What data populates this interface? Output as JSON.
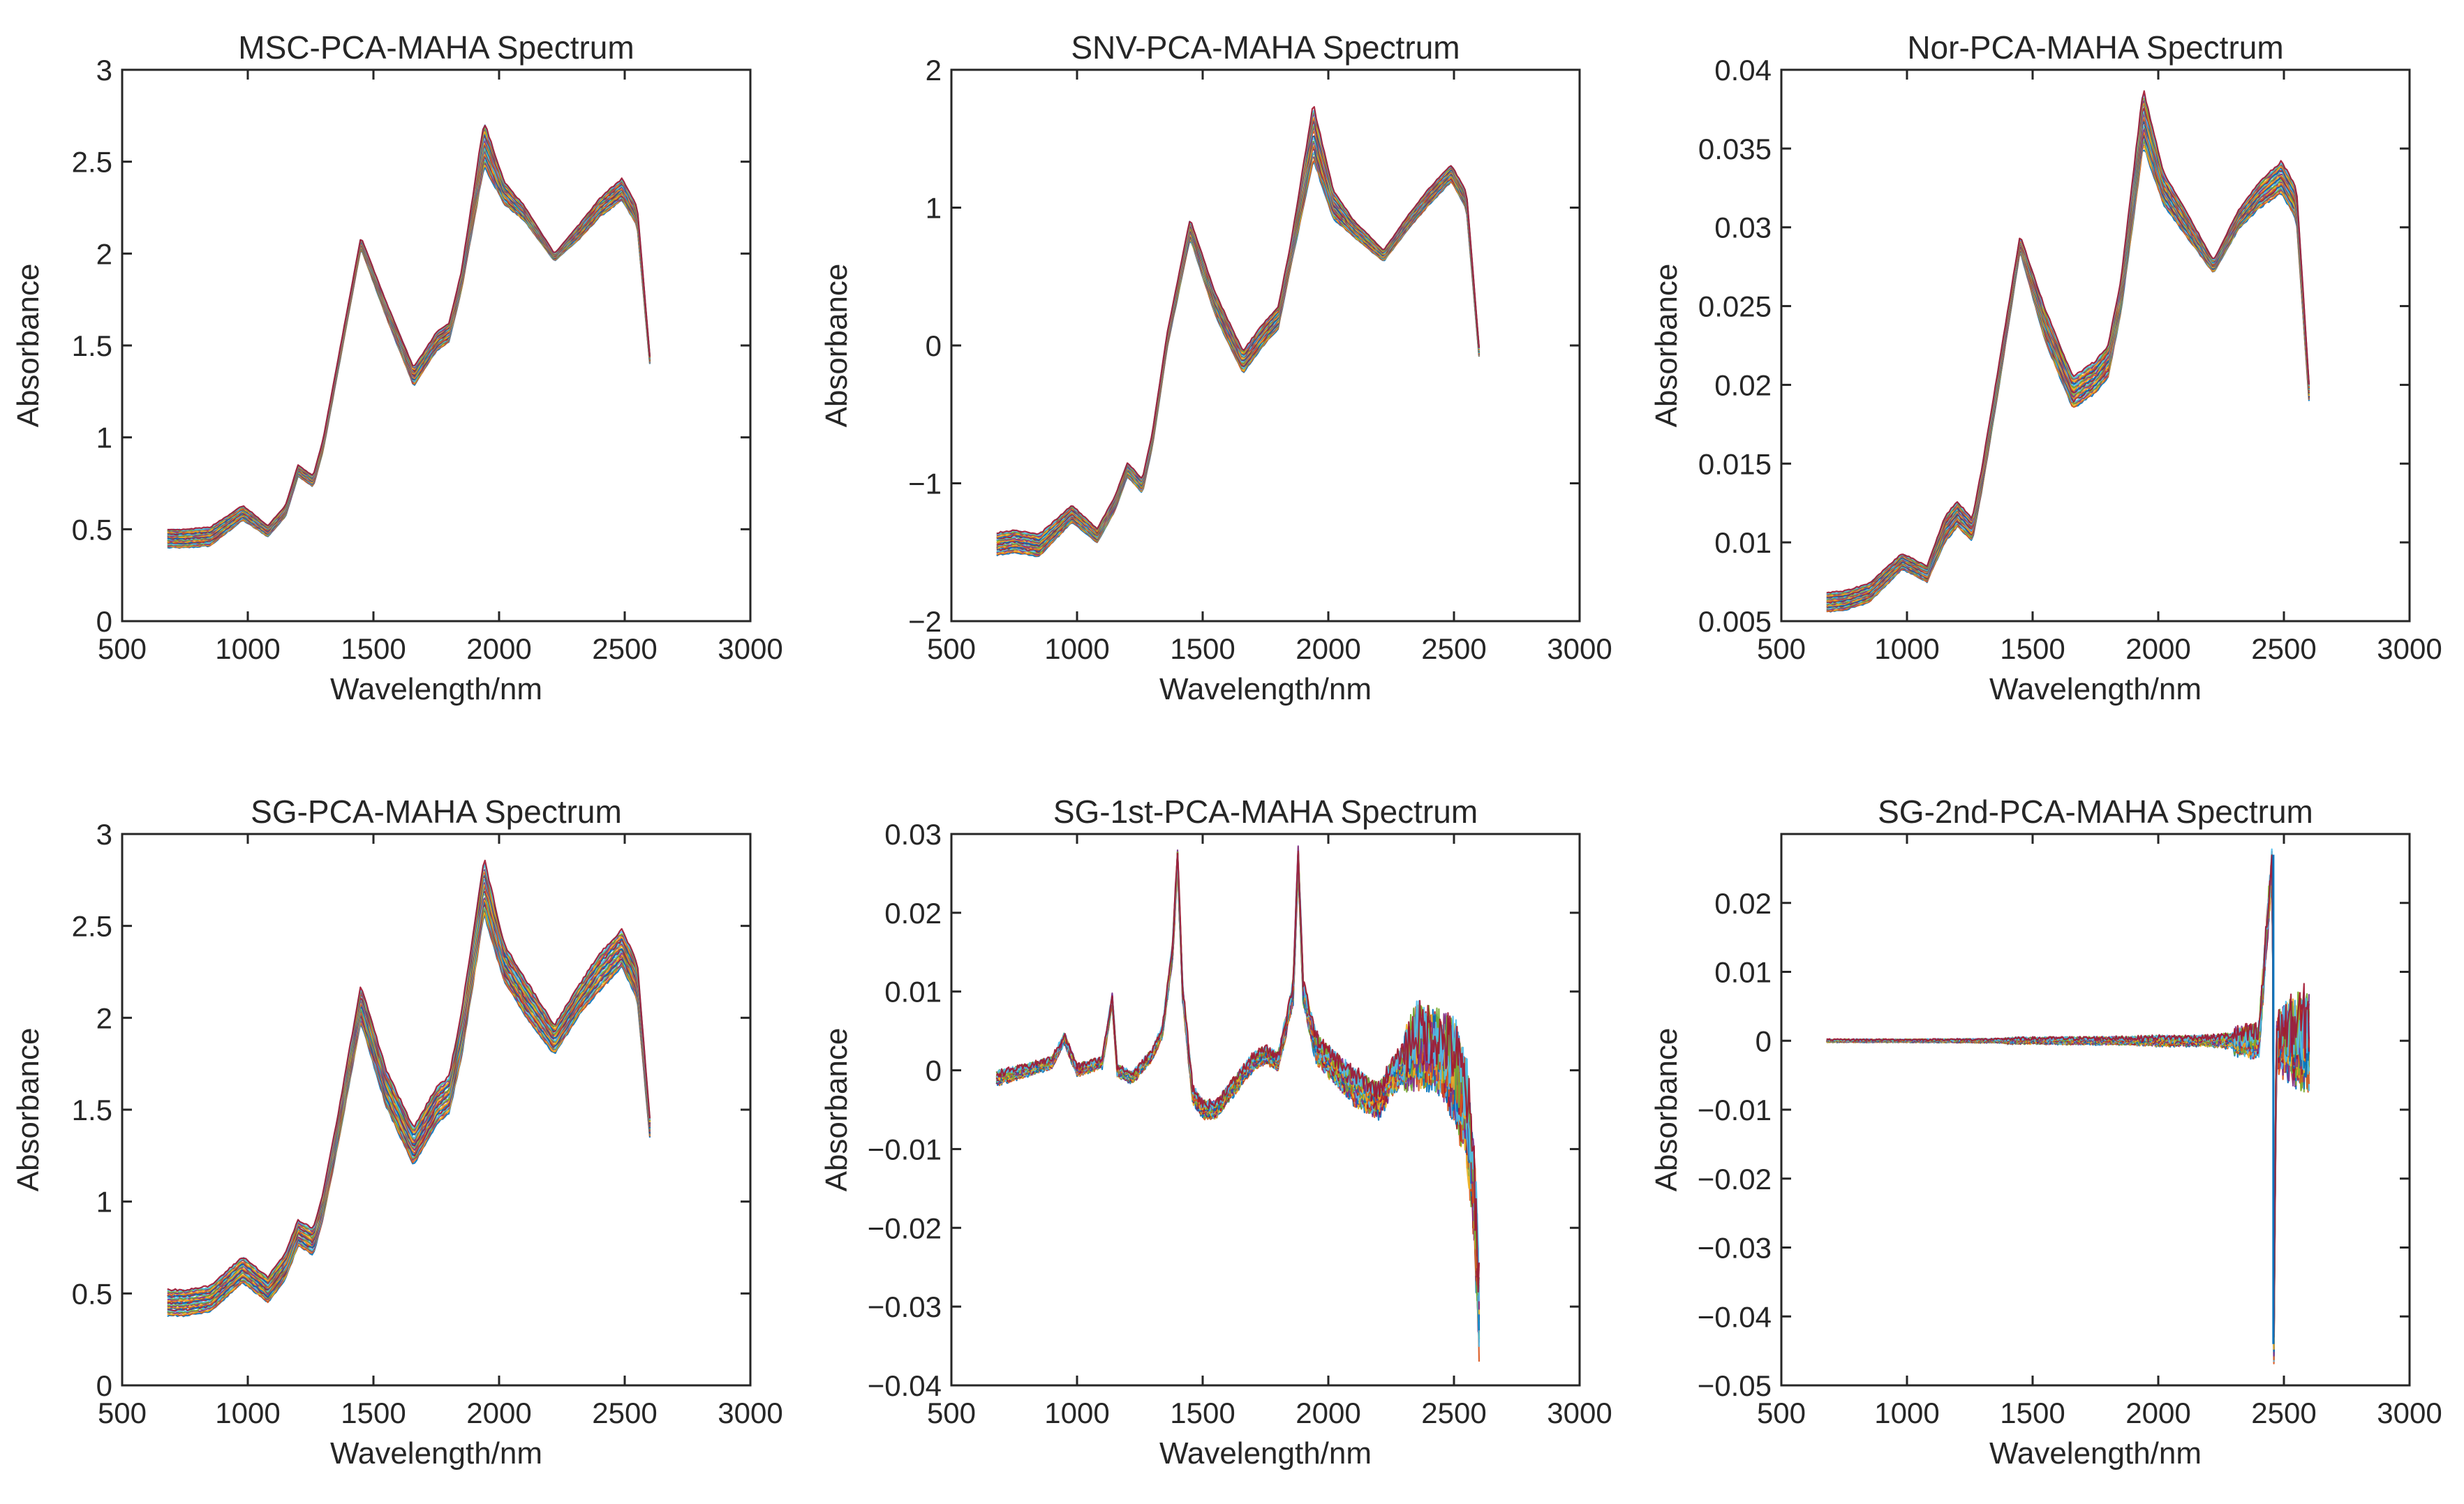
{
  "figure": {
    "chart_data": [
      {
        "type": "line",
        "title": "MSC-PCA-MAHA Spectrum",
        "xlabel": "Wavelength/nm",
        "ylabel": "Absorbance",
        "xlim": [
          500,
          3000
        ],
        "ylim": [
          0,
          3
        ],
        "xticks": [
          500,
          1000,
          1500,
          2000,
          2500,
          3000
        ],
        "xtick_labels": [
          "500",
          "1000",
          "1500",
          "2000",
          "2500",
          "3000"
        ],
        "yticks": [
          0,
          0.5,
          1,
          1.5,
          2,
          2.5,
          3
        ],
        "ytick_labels": [
          "0",
          "0.5",
          "1",
          "1.5",
          "2",
          "2.5",
          "3"
        ],
        "grid": false,
        "pattern": "absorbance",
        "x": [
          680,
          750,
          850,
          980,
          1080,
          1150,
          1200,
          1260,
          1300,
          1360,
          1450,
          1550,
          1660,
          1750,
          1800,
          1850,
          1940,
          2020,
          2100,
          2220,
          2320,
          2400,
          2490,
          2550,
          2600
        ],
        "mean": [
          0.45,
          0.45,
          0.46,
          0.59,
          0.49,
          0.6,
          0.82,
          0.76,
          0.96,
          1.4,
          2.06,
          1.7,
          1.33,
          1.52,
          1.57,
          1.85,
          2.6,
          2.33,
          2.22,
          1.98,
          2.12,
          2.25,
          2.35,
          2.2,
          1.42
        ],
        "spread": [
          0.05,
          0.05,
          0.05,
          0.04,
          0.03,
          0.03,
          0.03,
          0.03,
          0.03,
          0.03,
          0.03,
          0.04,
          0.05,
          0.05,
          0.05,
          0.05,
          0.12,
          0.06,
          0.04,
          0.02,
          0.04,
          0.05,
          0.06,
          0.05,
          0.02
        ]
      },
      {
        "type": "line",
        "title": "SNV-PCA-MAHA Spectrum",
        "xlabel": "Wavelength/nm",
        "ylabel": "Absorbance",
        "xlim": [
          500,
          3000
        ],
        "ylim": [
          -2,
          2
        ],
        "xticks": [
          500,
          1000,
          1500,
          2000,
          2500,
          3000
        ],
        "xtick_labels": [
          "500",
          "1000",
          "1500",
          "2000",
          "2500",
          "3000"
        ],
        "yticks": [
          -2,
          -1,
          0,
          1,
          2
        ],
        "ytick_labels": [
          "−2",
          "−1",
          "0",
          "1",
          "2"
        ],
        "grid": false,
        "pattern": "absorbance",
        "x": [
          680,
          750,
          850,
          980,
          1080,
          1150,
          1200,
          1260,
          1300,
          1360,
          1450,
          1550,
          1660,
          1750,
          1800,
          1850,
          1940,
          2020,
          2100,
          2220,
          2320,
          2400,
          2490,
          2550,
          2600
        ],
        "mean": [
          -1.44,
          -1.42,
          -1.45,
          -1.22,
          -1.38,
          -1.15,
          -0.9,
          -1.02,
          -0.68,
          0.05,
          0.85,
          0.3,
          -0.12,
          0.1,
          0.2,
          0.65,
          1.55,
          1.02,
          0.85,
          0.65,
          0.9,
          1.08,
          1.25,
          1.05,
          -0.05
        ],
        "spread": [
          0.08,
          0.08,
          0.08,
          0.06,
          0.05,
          0.05,
          0.05,
          0.05,
          0.05,
          0.05,
          0.07,
          0.08,
          0.08,
          0.08,
          0.08,
          0.08,
          0.2,
          0.1,
          0.06,
          0.04,
          0.05,
          0.06,
          0.06,
          0.06,
          0.03
        ]
      },
      {
        "type": "line",
        "title": "Nor-PCA-MAHA Spectrum",
        "xlabel": "Wavelength/nm",
        "ylabel": "Absorbance",
        "xlim": [
          500,
          3000
        ],
        "ylim": [
          0.005,
          0.04
        ],
        "xticks": [
          500,
          1000,
          1500,
          2000,
          2500,
          3000
        ],
        "xtick_labels": [
          "500",
          "1000",
          "1500",
          "2000",
          "2500",
          "3000"
        ],
        "yticks": [
          0.005,
          0.01,
          0.015,
          0.02,
          0.025,
          0.03,
          0.035,
          0.04
        ],
        "ytick_labels": [
          "0.005",
          "0.01",
          "0.015",
          "0.02",
          "0.025",
          "0.03",
          "0.035",
          "0.04"
        ],
        "grid": false,
        "pattern": "absorbance",
        "x": [
          680,
          750,
          850,
          980,
          1080,
          1150,
          1200,
          1260,
          1300,
          1360,
          1450,
          1550,
          1660,
          1750,
          1800,
          1850,
          1940,
          2020,
          2100,
          2220,
          2320,
          2400,
          2490,
          2550,
          2600
        ],
        "mean": [
          0.0062,
          0.0063,
          0.0068,
          0.0088,
          0.008,
          0.0108,
          0.0118,
          0.0108,
          0.0142,
          0.02,
          0.029,
          0.0238,
          0.0195,
          0.0205,
          0.0215,
          0.0255,
          0.037,
          0.0325,
          0.0305,
          0.0275,
          0.0305,
          0.032,
          0.0332,
          0.0315,
          0.0195
        ],
        "spread": [
          0.0006,
          0.0006,
          0.0006,
          0.0005,
          0.0005,
          0.0008,
          0.0008,
          0.0007,
          0.0007,
          0.0007,
          0.0005,
          0.001,
          0.001,
          0.001,
          0.001,
          0.001,
          0.0018,
          0.001,
          0.0008,
          0.0004,
          0.0006,
          0.0008,
          0.001,
          0.001,
          0.0005
        ]
      },
      {
        "type": "line",
        "title": "SG-PCA-MAHA Spectrum",
        "xlabel": "Wavelength/nm",
        "ylabel": "Absorbance",
        "xlim": [
          500,
          3000
        ],
        "ylim": [
          0,
          3
        ],
        "xticks": [
          500,
          1000,
          1500,
          2000,
          2500,
          3000
        ],
        "xtick_labels": [
          "500",
          "1000",
          "1500",
          "2000",
          "2500",
          "3000"
        ],
        "yticks": [
          0,
          0.5,
          1,
          1.5,
          2,
          2.5,
          3
        ],
        "ytick_labels": [
          "0",
          "0.5",
          "1",
          "1.5",
          "2",
          "2.5",
          "3"
        ],
        "grid": false,
        "pattern": "absorbance",
        "x": [
          680,
          750,
          850,
          980,
          1080,
          1150,
          1200,
          1260,
          1300,
          1360,
          1450,
          1550,
          1660,
          1750,
          1800,
          1850,
          1940,
          2020,
          2100,
          2220,
          2320,
          2400,
          2490,
          2550,
          2600
        ],
        "mean": [
          0.45,
          0.45,
          0.47,
          0.63,
          0.52,
          0.65,
          0.83,
          0.78,
          0.98,
          1.4,
          2.08,
          1.62,
          1.3,
          1.52,
          1.58,
          1.9,
          2.72,
          2.3,
          2.12,
          1.88,
          2.1,
          2.25,
          2.38,
          2.2,
          1.4
        ],
        "spread": [
          0.07,
          0.07,
          0.07,
          0.07,
          0.07,
          0.07,
          0.07,
          0.07,
          0.07,
          0.08,
          0.1,
          0.1,
          0.1,
          0.1,
          0.1,
          0.12,
          0.15,
          0.1,
          0.1,
          0.08,
          0.08,
          0.1,
          0.1,
          0.1,
          0.05
        ]
      },
      {
        "type": "line",
        "title": "SG-1st-PCA-MAHA Spectrum",
        "xlabel": "Wavelength/nm",
        "ylabel": "Absorbance",
        "xlim": [
          500,
          3000
        ],
        "ylim": [
          -0.04,
          0.03
        ],
        "xticks": [
          500,
          1000,
          1500,
          2000,
          2500,
          3000
        ],
        "xtick_labels": [
          "500",
          "1000",
          "1500",
          "2000",
          "2500",
          "3000"
        ],
        "yticks": [
          -0.04,
          -0.03,
          -0.02,
          -0.01,
          0,
          0.01,
          0.02,
          0.03
        ],
        "ytick_labels": [
          "−0.04",
          "−0.03",
          "−0.02",
          "−0.01",
          "0",
          "0.01",
          "0.02",
          "0.03"
        ],
        "grid": false,
        "pattern": "derivative",
        "x": [
          680,
          800,
          900,
          950,
          1000,
          1100,
          1140,
          1160,
          1220,
          1300,
          1340,
          1380,
          1400,
          1420,
          1460,
          1500,
          1550,
          1650,
          1700,
          1750,
          1800,
          1860,
          1880,
          1900,
          1950,
          2000,
          2100,
          2200,
          2250,
          2300,
          2350,
          2400,
          2450,
          2500,
          2550,
          2580,
          2600
        ],
        "mean": [
          -0.001,
          0.0,
          0.001,
          0.004,
          0.0,
          0.001,
          0.009,
          0.0,
          -0.001,
          0.002,
          0.005,
          0.015,
          0.027,
          0.01,
          -0.003,
          -0.005,
          -0.005,
          -0.001,
          0.001,
          0.002,
          0.001,
          0.01,
          0.027,
          0.01,
          0.003,
          0.001,
          -0.002,
          -0.004,
          -0.001,
          0.001,
          0.003,
          0.003,
          0.002,
          0.0,
          -0.005,
          -0.015,
          -0.03
        ],
        "spread": [
          0.0012,
          0.001,
          0.001,
          0.001,
          0.001,
          0.001,
          0.001,
          0.001,
          0.001,
          0.001,
          0.001,
          0.0015,
          0.0015,
          0.0015,
          0.0015,
          0.0015,
          0.0015,
          0.0015,
          0.0015,
          0.0015,
          0.0015,
          0.002,
          0.002,
          0.002,
          0.0025,
          0.0025,
          0.003,
          0.003,
          0.003,
          0.003,
          0.004,
          0.004,
          0.004,
          0.005,
          0.005,
          0.005,
          0.005
        ]
      },
      {
        "type": "line",
        "title": "SG-2nd-PCA-MAHA Spectrum",
        "xlabel": "Wavelength/nm",
        "ylabel": "Absorbance",
        "xlim": [
          500,
          3000
        ],
        "ylim": [
          -0.05,
          0.03
        ],
        "xticks": [
          500,
          1000,
          1500,
          2000,
          2500,
          3000
        ],
        "xtick_labels": [
          "500",
          "1000",
          "1500",
          "2000",
          "2500",
          "3000"
        ],
        "yticks": [
          -0.05,
          -0.04,
          -0.03,
          -0.02,
          -0.01,
          0,
          0.01,
          0.02
        ],
        "ytick_labels": [
          "−0.05",
          "−0.04",
          "−0.03",
          "−0.02",
          "−0.01",
          "0",
          "0.01",
          "0.02"
        ],
        "grid": false,
        "pattern": "second-derivative",
        "x": [
          680,
          1000,
          1380,
          1400,
          1900,
          2000,
          2200,
          2400,
          2455,
          2460,
          2470,
          2500,
          2550,
          2600
        ],
        "mean": [
          0,
          0,
          0,
          0,
          0,
          0,
          0,
          0,
          0.027,
          -0.044,
          0,
          0,
          0,
          0
        ],
        "spread": [
          0.0003,
          0.0003,
          0.0004,
          0.0006,
          0.0008,
          0.001,
          0.001,
          0.002,
          0.002,
          0.002,
          0.003,
          0.004,
          0.005,
          0.006
        ],
        "spike_x": 2458,
        "spike_range": [
          -0.044,
          0.027
        ]
      }
    ],
    "series_colors": [
      "#0072BD",
      "#D95319",
      "#EDB120",
      "#7E2F8E",
      "#77AC30",
      "#4DBEEE",
      "#A2142F"
    ]
  }
}
